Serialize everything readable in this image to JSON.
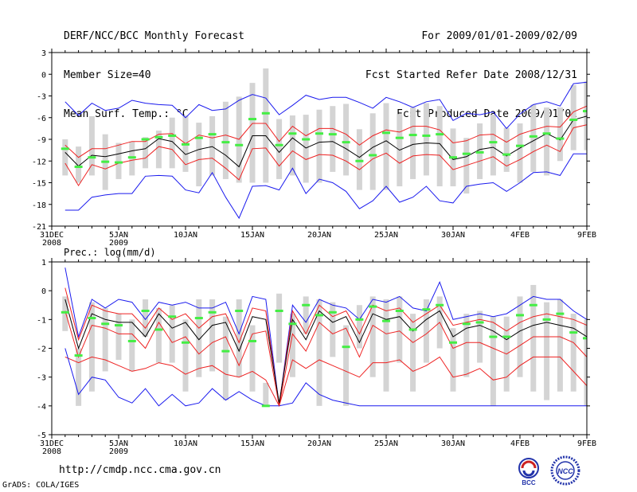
{
  "header": {
    "title": "DERF/NCC/BCC Monthly Forecast",
    "member_size": "Member Size=40",
    "variable": "Mean Surf. Temp.: °C",
    "period": "For 2009/01/01-2009/02/09",
    "started": "Fcst Started Refer Date 2008/12/31",
    "produced": "Fcst Produced Date 2009/01/01"
  },
  "footer": {
    "url": "http://cmdp.ncc.cma.gov.cn",
    "grads": "GrADS: COLA/IGES"
  },
  "logos": {
    "bcc": "BCC",
    "ncc": "NCC"
  },
  "colors": {
    "box": "#d4d4d4",
    "median": "#44ee44",
    "mean": "#000000",
    "spread": "#ee2222",
    "envelope": "#1a1aee"
  },
  "chart_data": [
    {
      "type": "line",
      "title": "Mean Surf. Temp.: °C",
      "ylim": [
        -21,
        3
      ],
      "yticks": [
        3,
        0,
        -3,
        -6,
        -9,
        -12,
        -15,
        -18,
        -21
      ],
      "xlim": [
        0,
        40
      ],
      "xtick_positions": [
        0,
        5,
        10,
        15,
        20,
        25,
        30,
        35,
        40
      ],
      "xtick_labels": [
        [
          "31DEC",
          "2008"
        ],
        [
          "5JAN",
          "2009"
        ],
        [
          "10JAN"
        ],
        [
          "15JAN"
        ],
        [
          "20JAN"
        ],
        [
          "25JAN"
        ],
        [
          "30JAN"
        ],
        [
          "4FEB"
        ],
        [
          "9FEB"
        ]
      ],
      "x": [
        1,
        2,
        3,
        4,
        5,
        6,
        7,
        8,
        9,
        10,
        11,
        12,
        13,
        14,
        15,
        16,
        17,
        18,
        19,
        20,
        21,
        22,
        23,
        24,
        25,
        26,
        27,
        28,
        29,
        30,
        31,
        32,
        33,
        34,
        35,
        36,
        37,
        38,
        39,
        40
      ],
      "series": [
        {
          "name": "max",
          "values": [
            -3.8,
            -5.7,
            -4,
            -5,
            -4.7,
            -3.6,
            -4,
            -4.2,
            -4.3,
            -6,
            -4.2,
            -5,
            -4.8,
            -3.6,
            -2.8,
            -3.3,
            -5.6,
            -4.3,
            -2.9,
            -3.5,
            -3.2,
            -3.2,
            -3.9,
            -4.7,
            -3.2,
            -3.8,
            -4.6,
            -3.8,
            -3.5,
            -6.4,
            -5.4,
            -5.6,
            -5.2,
            -7.5,
            -5.5,
            -4.2,
            -3.8,
            -4.4,
            -1.3,
            -1.1
          ]
        },
        {
          "name": "upper",
          "values": [
            -9.8,
            -11.5,
            -10.3,
            -10.3,
            -9.8,
            -9.3,
            -9.3,
            -8.3,
            -8.2,
            -9.6,
            -8.4,
            -8.8,
            -8.4,
            -9,
            -6.8,
            -6.8,
            -9.3,
            -7.2,
            -8.5,
            -7.5,
            -7.5,
            -8.3,
            -9.8,
            -8.5,
            -7.7,
            -8,
            -7.2,
            -7.2,
            -7.7,
            -9.5,
            -9.2,
            -8.4,
            -8.3,
            -9.4,
            -8.3,
            -7.7,
            -7.2,
            -7.3,
            -5.2,
            -4.4
          ]
        },
        {
          "name": "mean",
          "values": [
            -10.8,
            -12.7,
            -11.2,
            -11.4,
            -11,
            -10.6,
            -10.3,
            -8.9,
            -9.3,
            -11.1,
            -10.4,
            -10,
            -11.2,
            -12.8,
            -8.5,
            -8.5,
            -10.8,
            -8.8,
            -10.2,
            -9.4,
            -9.3,
            -10.3,
            -11.5,
            -10.1,
            -9.2,
            -10.5,
            -9.7,
            -9.5,
            -9.6,
            -11.8,
            -11.4,
            -10.4,
            -10.1,
            -11.3,
            -10.2,
            -9.2,
            -8.2,
            -9.1,
            -6.3,
            -5.8
          ]
        },
        {
          "name": "lower",
          "values": [
            -12.3,
            -15.4,
            -12.5,
            -13.1,
            -12.3,
            -11.9,
            -11.6,
            -10,
            -10.4,
            -12.5,
            -11.8,
            -11.6,
            -13,
            -14.6,
            -10.3,
            -10.2,
            -12.7,
            -10.6,
            -11.8,
            -11.1,
            -11.2,
            -12,
            -13.2,
            -11.7,
            -10.9,
            -12.3,
            -11.3,
            -11.1,
            -11.2,
            -13.2,
            -12.6,
            -12,
            -11.4,
            -12.7,
            -11.8,
            -10.7,
            -9.8,
            -10.7,
            -7.4,
            -7
          ]
        },
        {
          "name": "min",
          "values": [
            -18.8,
            -18.8,
            -17,
            -16.7,
            -16.5,
            -16.5,
            -14.1,
            -14,
            -14.1,
            -16,
            -16.4,
            -13.6,
            -17,
            -19.9,
            -15.5,
            -15.4,
            -16,
            -13,
            -16.5,
            -14.5,
            -15,
            -16.2,
            -18.6,
            -17.5,
            -15.5,
            -17.7,
            -17,
            -15.5,
            -17.5,
            -17.8,
            -15.5,
            -15.2,
            -15,
            -16.2,
            -15,
            -13.6,
            -13.5,
            -14,
            -11,
            -11
          ]
        },
        {
          "name": "median",
          "values": [
            -10.3,
            -12.8,
            -11.5,
            -12.1,
            -12.2,
            -11.5,
            -9,
            -8.7,
            -8.5,
            -9.7,
            -8.8,
            -8.3,
            -9.4,
            -9.8,
            -6.2,
            -5.4,
            -9.8,
            -8.2,
            -9,
            -8.2,
            -8.3,
            -9.4,
            -12,
            -11.2,
            -8.1,
            -8.8,
            -8.4,
            -8.5,
            -8.3,
            -11.5,
            -11,
            -10.8,
            -9.4,
            -11.1,
            -9.9,
            -8.6,
            -8.2,
            -8.9,
            -6.3,
            -5.1
          ]
        },
        {
          "name": "box_hi",
          "values": [
            -9,
            -10,
            -5.8,
            -8.3,
            -9.5,
            -9.3,
            -8.7,
            -7.8,
            -6,
            -5.7,
            -6.7,
            -5.8,
            -3.8,
            -3.1,
            -1.2,
            0.8,
            -6.2,
            -5.7,
            -5.6,
            -4.9,
            -4.4,
            -4.1,
            -7.6,
            -5.4,
            -4,
            -5.5,
            -4.6,
            -4,
            -4.4,
            -7.5,
            -8.8,
            -6.8,
            -5.6,
            -7.4,
            -6.8,
            -4.2,
            -4.6,
            -4.6,
            -1.5,
            -1
          ]
        },
        {
          "name": "box_lo",
          "values": [
            -14,
            -15,
            -14,
            -16,
            -14.5,
            -14,
            -13,
            -13,
            -13,
            -13.5,
            -15.5,
            -14,
            -14.5,
            -15,
            -15,
            -15,
            -14.5,
            -14,
            -15,
            -15,
            -13.5,
            -14,
            -16,
            -16,
            -16,
            -15.5,
            -14.5,
            -14,
            -15.5,
            -15.5,
            -16.5,
            -14.5,
            -14,
            -13.5,
            -15,
            -13.5,
            -14,
            -12,
            -10.5,
            -10.5
          ]
        }
      ]
    },
    {
      "type": "line",
      "title": "Prec.: log(mm/d)",
      "ylim": [
        -5,
        1
      ],
      "yticks": [
        1,
        0,
        -1,
        -2,
        -3,
        -4,
        -5
      ],
      "xlim": [
        0,
        40
      ],
      "xtick_positions": [
        0,
        5,
        10,
        15,
        20,
        25,
        30,
        35,
        40
      ],
      "xtick_labels": [
        [
          "31DEC",
          "2008"
        ],
        [
          "5JAN",
          "2009"
        ],
        [
          "10JAN"
        ],
        [
          "15JAN"
        ],
        [
          "20JAN"
        ],
        [
          "25JAN"
        ],
        [
          "30JAN"
        ],
        [
          "4FEB"
        ],
        [
          "9FEB"
        ]
      ],
      "x": [
        1,
        2,
        3,
        4,
        5,
        6,
        7,
        8,
        9,
        10,
        11,
        12,
        13,
        14,
        15,
        16,
        17,
        18,
        19,
        20,
        21,
        22,
        23,
        24,
        25,
        26,
        27,
        28,
        29,
        30,
        31,
        32,
        33,
        34,
        35,
        36,
        37,
        38,
        39,
        40
      ],
      "series": [
        {
          "name": "max",
          "values": [
            0.8,
            -1.6,
            -0.3,
            -0.6,
            -0.3,
            -0.4,
            -1,
            -0.4,
            -0.5,
            -0.4,
            -0.6,
            -0.6,
            -0.4,
            -1.5,
            -0.2,
            -0.3,
            -4,
            -0.5,
            -1.1,
            -0.3,
            -0.5,
            -0.6,
            -1,
            -0.3,
            -0.4,
            -0.2,
            -0.6,
            -0.7,
            0.3,
            -1,
            -0.9,
            -0.8,
            -0.9,
            -0.8,
            -0.5,
            -0.2,
            -0.3,
            -0.3,
            -0.7,
            -1
          ]
        },
        {
          "name": "upper",
          "values": [
            0.1,
            -1.7,
            -0.5,
            -0.7,
            -0.8,
            -0.8,
            -1.3,
            -0.6,
            -1,
            -0.8,
            -1.3,
            -0.9,
            -0.8,
            -1.8,
            -0.6,
            -0.7,
            -4,
            -0.7,
            -1.5,
            -0.5,
            -0.9,
            -0.7,
            -1.5,
            -0.5,
            -0.7,
            -0.6,
            -1.1,
            -0.8,
            -0.5,
            -1.2,
            -1.1,
            -1,
            -1.1,
            -1.4,
            -1.1,
            -0.9,
            -0.8,
            -0.9,
            -1,
            -1.2
          ]
        },
        {
          "name": "mean",
          "values": [
            -0.3,
            -2,
            -0.8,
            -1,
            -1.1,
            -1.1,
            -1.6,
            -0.8,
            -1.3,
            -1.1,
            -1.7,
            -1.2,
            -1.1,
            -2.1,
            -0.9,
            -1,
            -3.9,
            -1,
            -1.7,
            -0.7,
            -1.1,
            -0.9,
            -1.8,
            -0.8,
            -1,
            -0.9,
            -1.4,
            -1,
            -0.7,
            -1.6,
            -1.3,
            -1.2,
            -1.4,
            -1.7,
            -1.4,
            -1.2,
            -1.1,
            -1.2,
            -1.3,
            -1.6
          ]
        },
        {
          "name": "lower",
          "values": [
            -0.7,
            -2.3,
            -1.2,
            -1.3,
            -1.5,
            -1.5,
            -2,
            -1.1,
            -1.8,
            -1.6,
            -2.2,
            -1.8,
            -1.6,
            -2.6,
            -1.5,
            -1.4,
            -4,
            -1.5,
            -2.1,
            -1.1,
            -1.5,
            -1.3,
            -2.3,
            -1.2,
            -1.5,
            -1.4,
            -1.8,
            -1.5,
            -1.1,
            -2,
            -1.8,
            -1.8,
            -2,
            -2.2,
            -1.9,
            -1.6,
            -1.6,
            -1.6,
            -1.8,
            -2.3
          ]
        },
        {
          "name": "min",
          "values": [
            -2,
            -3.6,
            -3,
            -3.1,
            -3.7,
            -3.9,
            -3.4,
            -4,
            -3.6,
            -4,
            -3.9,
            -3.4,
            -3.8,
            -3.5,
            -3.8,
            -4,
            -4,
            -3.9,
            -3.2,
            -3.6,
            -3.8,
            -3.9,
            -4,
            -4,
            -4,
            -4,
            -4,
            -4,
            -4,
            -4,
            -4,
            -4,
            -4,
            -4,
            -4,
            -4,
            -4,
            -4,
            -4,
            -4
          ]
        },
        {
          "name": "low_red",
          "values": [
            -2.3,
            -2.5,
            -2.3,
            -2.4,
            -2.6,
            -2.8,
            -2.7,
            -2.5,
            -2.6,
            -2.9,
            -2.7,
            -2.6,
            -2.9,
            -3,
            -2.8,
            -3.1,
            -4,
            -2.4,
            -2.7,
            -2.4,
            -2.6,
            -2.8,
            -3,
            -2.5,
            -2.5,
            -2.4,
            -2.8,
            -2.6,
            -2.3,
            -3,
            -2.9,
            -2.7,
            -3.1,
            -3,
            -2.6,
            -2.3,
            -2.3,
            -2.3,
            -2.8,
            -3.3
          ]
        },
        {
          "name": "median",
          "values": [
            -0.75,
            -2.25,
            -0.95,
            -1.15,
            -1.2,
            -1.75,
            -0.7,
            -1.35,
            -0.9,
            -1.8,
            -0.95,
            -0.75,
            -2.1,
            -0.7,
            -1.75,
            -4,
            -0.7,
            -1.15,
            -0.5,
            -0.85,
            -0.75,
            -1.95,
            -1,
            -0.55,
            -1.05,
            -0.7,
            -1.35,
            -0.65,
            -0.5,
            -1.8,
            -1.15,
            -1.1,
            -1.6,
            -1.6,
            -0.85,
            -0.5,
            -1,
            -0.8,
            -1.45,
            -1.65
          ]
        },
        {
          "name": "box_hi",
          "values": [
            -0.2,
            -2,
            -0.4,
            -0.6,
            -0.8,
            -1,
            -0.3,
            -0.6,
            -0.5,
            -1,
            -0.3,
            -0.3,
            -0.9,
            -0.3,
            -1.2,
            -3.2,
            -0.1,
            -0.8,
            -0.2,
            -0.3,
            -0.4,
            -1.2,
            -0.5,
            -0.2,
            -0.3,
            -0.2,
            -0.8,
            -0.3,
            -0.2,
            -1.3,
            -0.8,
            -0.7,
            -0.9,
            -0.9,
            -0.2,
            0.2,
            -0.4,
            -0.3,
            -0.8,
            -1
          ]
        },
        {
          "name": "box_lo",
          "values": [
            -1.4,
            -4,
            -3.5,
            -2.8,
            -2.4,
            -2.8,
            -1.6,
            -2.5,
            -2.5,
            -3.5,
            -3,
            -2.8,
            -3.8,
            -3,
            -3.5,
            -4,
            -2.5,
            -3,
            -1.5,
            -4,
            -2.3,
            -4,
            -2,
            -3,
            -3.5,
            -2.5,
            -3.5,
            -2.5,
            -2,
            -3.5,
            -3,
            -2.5,
            -4,
            -3.5,
            -3,
            -3.5,
            -3.8,
            -3.5,
            -3.5,
            -4
          ]
        }
      ]
    }
  ]
}
